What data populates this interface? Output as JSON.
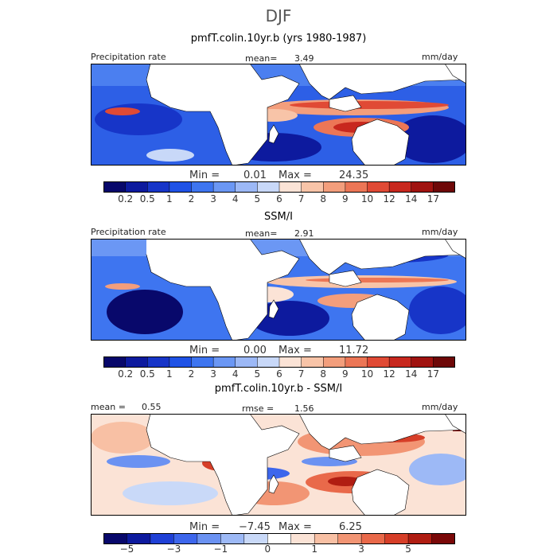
{
  "season": "DJF",
  "colorbars": {
    "precip": {
      "colors": [
        "#08086b",
        "#0d1a9e",
        "#1735c8",
        "#1f52e6",
        "#3e75f0",
        "#6b97f4",
        "#9cb8f6",
        "#c8d8f8",
        "#fbe3d6",
        "#f8c4a8",
        "#f39e7c",
        "#ec7656",
        "#e04a35",
        "#c8281e",
        "#a01310",
        "#6e0808"
      ],
      "labels": [
        "0.2",
        "0.5",
        "1",
        "2",
        "3",
        "4",
        "5",
        "6",
        "7",
        "8",
        "9",
        "10",
        "12",
        "14",
        "17"
      ]
    },
    "diff": {
      "colors": [
        "#08086b",
        "#0d1a9e",
        "#1f40d6",
        "#3d66ec",
        "#6b92f2",
        "#9db9f6",
        "#c9d9f8",
        "#ffffff",
        "#fbe3d6",
        "#f8c0a4",
        "#f29574",
        "#e9694a",
        "#d63e28",
        "#b01d12",
        "#7a0808"
      ],
      "labels": [
        "−5",
        "−3",
        "−1",
        "0",
        "1",
        "3",
        "5"
      ]
    }
  },
  "panels": [
    {
      "title": "pmfT.colin.10yr.b (yrs 1980-1987)",
      "left_label": "Precipitation rate",
      "mean_label": "mean=",
      "mean_value": "3.49",
      "units": "mm/day",
      "min_label": "Min =",
      "min_value": "0.01",
      "max_label": "Max =",
      "max_value": "24.35"
    },
    {
      "title": "SSM/I",
      "left_label": "Precipitation rate",
      "mean_label": "mean=",
      "mean_value": "2.91",
      "units": "mm/day",
      "min_label": "Min =",
      "min_value": "0.00",
      "max_label": "Max =",
      "max_value": "11.72"
    },
    {
      "title": "pmfT.colin.10yr.b - SSM/I",
      "mean_label": "mean =",
      "mean_value": "0.55",
      "rmse_label": "rmse =",
      "rmse_value": "1.56",
      "units": "mm/day",
      "min_label": "Min =",
      "min_value": "−7.45",
      "max_label": "Max =",
      "max_value": "6.25"
    }
  ]
}
